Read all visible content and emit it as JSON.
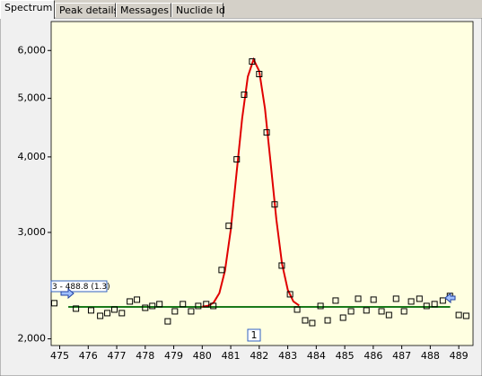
{
  "tabs": [
    "Spectrum",
    "Peak details",
    "Messages",
    "Nuclide Id"
  ],
  "chart_data": {
    "type": "scatter",
    "x": [
      474.81,
      475.57,
      476.1,
      476.42,
      476.67,
      476.92,
      477.18,
      477.46,
      477.71,
      478.0,
      478.25,
      478.5,
      478.79,
      479.04,
      479.32,
      479.61,
      479.86,
      480.14,
      480.39,
      480.68,
      480.93,
      481.21,
      481.47,
      481.75,
      482.0,
      482.26,
      482.54,
      482.79,
      483.08,
      483.33,
      483.61,
      483.86,
      484.15,
      484.4,
      484.68,
      484.94,
      485.22,
      485.47,
      485.76,
      486.01,
      486.29,
      486.55,
      486.8,
      487.08,
      487.33,
      487.62,
      487.87,
      488.15,
      488.44,
      488.69,
      489.0,
      489.26
    ],
    "values": [
      2291,
      2244,
      2229,
      2183,
      2206,
      2236,
      2206,
      2306,
      2322,
      2251,
      2267,
      2283,
      2138,
      2221,
      2283,
      2221,
      2267,
      2283,
      2267,
      2600,
      3076,
      3963,
      5070,
      5754,
      5485,
      4391,
      3338,
      2644,
      2370,
      2236,
      2146,
      2124,
      2267,
      2146,
      2314,
      2168,
      2221,
      2330,
      2229,
      2322,
      2221,
      2190,
      2330,
      2221,
      2306,
      2330,
      2267,
      2283,
      2314,
      2355,
      2190,
      2183
    ],
    "color": "#000000",
    "fit": {
      "color": "#e00000",
      "x": [
        480.0,
        480.2,
        480.4,
        480.6,
        480.8,
        481.0,
        481.2,
        481.4,
        481.6,
        481.8,
        482.0,
        482.2,
        482.4,
        482.6,
        482.8,
        483.0,
        483.2,
        483.4
      ],
      "values": [
        2261,
        2268,
        2296,
        2381,
        2595,
        3031,
        3742,
        4634,
        5431,
        5797,
        5548,
        4811,
        3912,
        3151,
        2662,
        2411,
        2306,
        2271
      ]
    },
    "baseline": {
      "color": "#1a7a1a",
      "x": [
        475.3,
        488.7
      ],
      "values": [
        2259,
        2259
      ]
    },
    "annotations": [
      "3 - 488.8 (1.3)",
      "1"
    ],
    "xlim": [
      474.7,
      489.5
    ],
    "xticks": [
      475,
      476,
      477,
      478,
      479,
      480,
      481,
      482,
      483,
      484,
      485,
      486,
      487,
      488,
      489
    ],
    "ylim": [
      1950,
      6700
    ],
    "yscale": "log",
    "yticks": [
      {
        "value": 2000,
        "label": "2,000"
      },
      {
        "value": 3000,
        "label": "3,000"
      },
      {
        "value": 4000,
        "label": "4,000"
      },
      {
        "value": 5000,
        "label": "5,000"
      },
      {
        "value": 6000,
        "label": "6,000"
      }
    ]
  }
}
